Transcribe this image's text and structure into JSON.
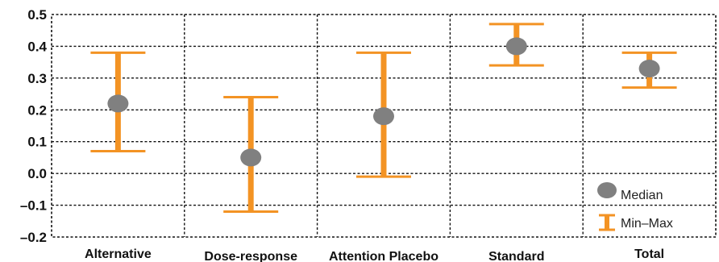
{
  "chart_data": {
    "type": "errorbar",
    "categories": [
      "Alternative",
      "Dose-response",
      "Attention Placebo",
      "Standard",
      "Total"
    ],
    "series": [
      {
        "name": "Median",
        "values": [
          0.22,
          0.05,
          0.18,
          0.4,
          0.33
        ]
      },
      {
        "name": "Min–Max",
        "min": [
          0.07,
          -0.12,
          -0.01,
          0.34,
          0.27
        ],
        "max": [
          0.38,
          0.24,
          0.38,
          0.47,
          0.38
        ]
      }
    ],
    "yticks": [
      "0.5",
      "0.4",
      "0.3",
      "0.2",
      "0.1",
      "0.0",
      "–0.1",
      "–0.2"
    ],
    "ylim": [
      -0.2,
      0.5
    ],
    "grid": true,
    "legend_position": "bottom-right",
    "colors": {
      "median": "#808080",
      "range": "#f39324",
      "grid": "#111111"
    }
  }
}
